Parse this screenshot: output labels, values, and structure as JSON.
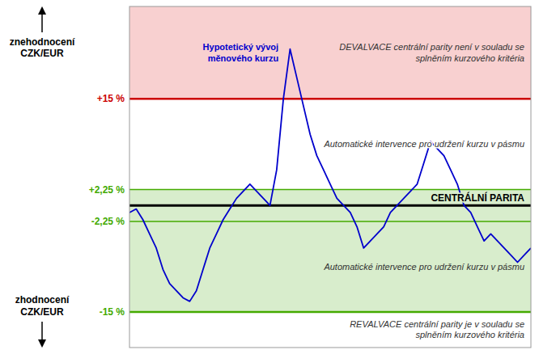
{
  "chart_data": {
    "type": "line",
    "x": [
      0,
      1,
      2,
      3,
      4,
      5,
      6,
      7,
      8,
      9,
      10,
      11,
      12,
      13,
      14,
      15,
      16,
      17,
      18,
      19,
      20,
      21,
      22,
      23,
      24,
      25,
      26,
      27,
      28,
      29,
      30,
      31,
      32,
      33,
      34,
      35,
      36,
      37,
      38,
      39,
      40,
      41,
      42,
      43,
      44,
      45,
      46,
      47,
      48,
      49,
      50,
      51,
      52,
      53,
      54,
      55,
      56,
      57,
      58,
      59,
      60
    ],
    "series": [
      {
        "name": "Hypotetický vývoj\nměnového kurzu",
        "color": "#0000cc",
        "values": [
          -1,
          -0.5,
          -2,
          -4,
          -6,
          -9,
          -11,
          -12,
          -13,
          -13.5,
          -12,
          -9,
          -6,
          -4,
          -2,
          -0.5,
          1,
          2,
          3,
          2,
          1,
          0,
          5,
          15,
          22,
          18,
          14,
          10,
          7,
          5,
          3,
          1,
          0,
          -1,
          -3,
          -6,
          -5,
          -4,
          -3,
          -1,
          0,
          1,
          2,
          3,
          6,
          9,
          8,
          7,
          5,
          3,
          0,
          -1,
          -3,
          -5,
          -4,
          -5,
          -6,
          -7,
          -8,
          -7,
          -6
        ]
      }
    ],
    "xlim": [
      0,
      60
    ],
    "ylim": [
      -20,
      28
    ],
    "tick_labels": false,
    "grid": false,
    "zones": [
      {
        "from": 15,
        "to": 28,
        "color": "#f8d0d0",
        "label": "DEVALVACE centrální parity není v souladu se\nsplněním kurzového kritéria"
      },
      {
        "from": 2.25,
        "to": 15,
        "color": "#ffffff",
        "label": "Automatické intervence pro udržení kurzu v pásmu"
      },
      {
        "from": -2.25,
        "to": 2.25,
        "color": "#d8edcc"
      },
      {
        "from": -15,
        "to": -2.25,
        "color": "#d8edcc",
        "label": "Automatické intervence pro udržení kurzu v pásmu"
      },
      {
        "from": -20,
        "to": -15,
        "color": "#ffffff",
        "label": "REVALVACE centrální parity je v souladu se\nsplněním kurzového kritéria"
      }
    ],
    "band_lines": [
      {
        "value": 15,
        "label": "+15 %",
        "color": "#cc0000"
      },
      {
        "value": 2.25,
        "label": "+2,25 %",
        "color": "#44aa00"
      },
      {
        "value": -2.25,
        "label": "-2,25 %",
        "color": "#44aa00"
      },
      {
        "value": -15,
        "label": "-15 %",
        "color": "#44aa00"
      }
    ],
    "central_parity": {
      "value": 0,
      "label": "CENTRÁLNÍ PARITA",
      "color": "#000000"
    },
    "annotations": [
      {
        "text": "znehodnocení\nCZK/EUR",
        "direction": "up"
      },
      {
        "text": "zhodnocení\nCZK/EUR",
        "direction": "down"
      }
    ]
  }
}
